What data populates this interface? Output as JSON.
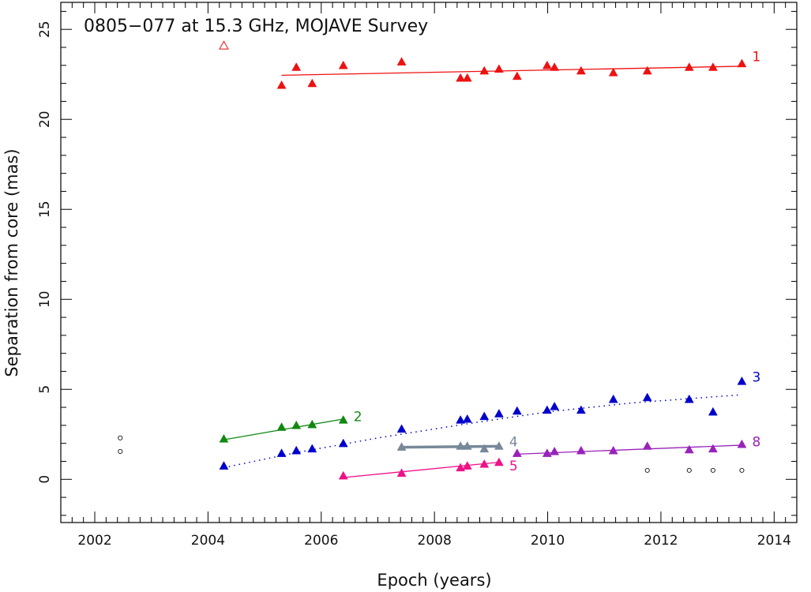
{
  "chart_data": {
    "type": "scatter",
    "title": "0805−077 at 15.3 GHz, MOJAVE Survey",
    "xlabel": "Epoch (years)",
    "ylabel": "Separation from core (mas)",
    "xlim": [
      2001.4,
      2014.4
    ],
    "ylim": [
      -2.4,
      26.5
    ],
    "xticks": [
      2002,
      2004,
      2006,
      2008,
      2010,
      2012,
      2014
    ],
    "yticks": [
      0,
      5,
      10,
      15,
      20,
      25
    ],
    "x_minor_step": 0.2,
    "y_minor_step": 1,
    "series": [
      {
        "name": "1",
        "color": "#ee1111",
        "marker": "triangle",
        "points": [
          [
            2005.3,
            21.9
          ],
          [
            2005.56,
            22.9
          ],
          [
            2005.84,
            22.0
          ],
          [
            2006.39,
            23.0
          ],
          [
            2007.42,
            23.2
          ],
          [
            2008.46,
            22.3
          ],
          [
            2008.58,
            22.3
          ],
          [
            2008.88,
            22.7
          ],
          [
            2009.14,
            22.8
          ],
          [
            2009.46,
            22.4
          ],
          [
            2009.99,
            23.0
          ],
          [
            2010.12,
            22.9
          ],
          [
            2010.59,
            22.7
          ],
          [
            2011.16,
            22.6
          ],
          [
            2011.76,
            22.7
          ],
          [
            2012.5,
            22.9
          ],
          [
            2012.92,
            22.9
          ],
          [
            2013.43,
            23.1
          ]
        ],
        "fit": {
          "style": "solid",
          "x": [
            2005.3,
            2013.43
          ],
          "y": [
            22.45,
            22.95
          ]
        },
        "label_y": 23.5
      },
      {
        "name": "2",
        "color": "#118811",
        "marker": "triangle",
        "points": [
          [
            2004.28,
            2.25
          ],
          [
            2005.3,
            2.9
          ],
          [
            2005.56,
            3.0
          ],
          [
            2005.84,
            3.05
          ],
          [
            2006.39,
            3.3
          ]
        ],
        "fit": {
          "style": "solid",
          "x": [
            2004.28,
            2006.39
          ],
          "y": [
            2.2,
            3.35
          ]
        },
        "label_y": 3.5
      },
      {
        "name": "3",
        "color": "#0000cc",
        "marker": "triangle",
        "points": [
          [
            2004.28,
            0.75
          ],
          [
            2005.3,
            1.45
          ],
          [
            2005.56,
            1.6
          ],
          [
            2005.84,
            1.7
          ],
          [
            2006.39,
            2.0
          ],
          [
            2007.42,
            2.8
          ],
          [
            2008.46,
            3.3
          ],
          [
            2008.58,
            3.35
          ],
          [
            2008.88,
            3.5
          ],
          [
            2009.14,
            3.65
          ],
          [
            2009.46,
            3.8
          ],
          [
            2009.99,
            3.85
          ],
          [
            2010.12,
            4.05
          ],
          [
            2010.59,
            3.85
          ],
          [
            2011.16,
            4.45
          ],
          [
            2011.76,
            4.55
          ],
          [
            2012.5,
            4.45
          ],
          [
            2012.92,
            3.75
          ],
          [
            2013.43,
            5.45
          ]
        ],
        "fit": {
          "style": "dotted",
          "x": [
            2004.28,
            2005.5,
            2007.0,
            2008.5,
            2010.0,
            2011.5,
            2013.43
          ],
          "y": [
            0.65,
            1.45,
            2.3,
            3.05,
            3.75,
            4.25,
            4.7
          ]
        },
        "label_y": 5.7
      },
      {
        "name": "4",
        "color": "#778899",
        "marker": "triangle",
        "points": [
          [
            2007.42,
            1.8
          ],
          [
            2008.46,
            1.85
          ],
          [
            2008.58,
            1.85
          ],
          [
            2008.88,
            1.7
          ],
          [
            2009.14,
            1.85
          ]
        ],
        "fit": {
          "style": "thick",
          "x": [
            2007.42,
            2009.14
          ],
          "y": [
            1.78,
            1.84
          ]
        },
        "label_y": 2.1
      },
      {
        "name": "5",
        "color": "#ee1188",
        "marker": "triangle",
        "points": [
          [
            2006.39,
            0.2
          ],
          [
            2007.42,
            0.35
          ],
          [
            2008.46,
            0.65
          ],
          [
            2008.58,
            0.75
          ],
          [
            2008.88,
            0.85
          ],
          [
            2009.14,
            0.95
          ]
        ],
        "fit": {
          "style": "solid",
          "x": [
            2006.39,
            2009.14
          ],
          "y": [
            0.1,
            0.95
          ]
        },
        "label_y": 0.75
      },
      {
        "name": "8",
        "color": "#9922bb",
        "marker": "triangle",
        "points": [
          [
            2009.46,
            1.45
          ],
          [
            2009.99,
            1.45
          ],
          [
            2010.12,
            1.55
          ],
          [
            2010.59,
            1.6
          ],
          [
            2011.16,
            1.6
          ],
          [
            2011.76,
            1.85
          ],
          [
            2012.5,
            1.65
          ],
          [
            2012.92,
            1.7
          ],
          [
            2013.43,
            1.95
          ]
        ],
        "fit": {
          "style": "solid",
          "x": [
            2009.46,
            2013.43
          ],
          "y": [
            1.4,
            1.9
          ]
        },
        "label_y": 2.1
      }
    ],
    "open_triangle": {
      "color": "#ee1111",
      "points": [
        [
          2004.28,
          24.1
        ]
      ]
    },
    "unassociated": {
      "color": "#111111",
      "marker": "circle",
      "points": [
        [
          2002.45,
          2.3
        ],
        [
          2002.45,
          1.55
        ],
        [
          2011.76,
          0.5
        ],
        [
          2012.5,
          0.5
        ],
        [
          2012.92,
          0.5
        ],
        [
          2013.43,
          0.5
        ]
      ]
    }
  }
}
